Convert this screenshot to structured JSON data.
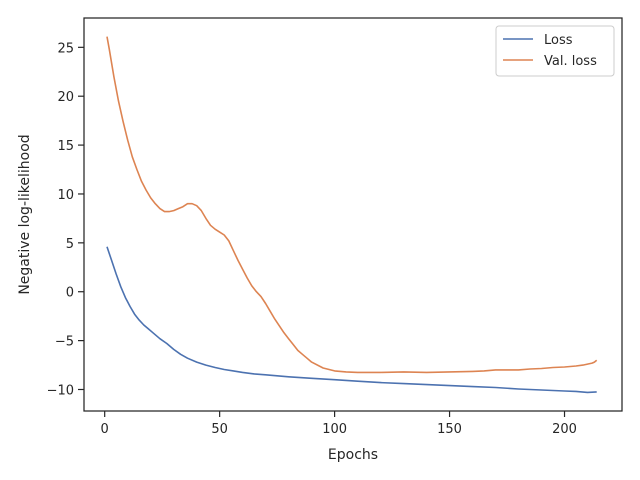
{
  "chart_data": {
    "type": "line",
    "xlabel": "Epochs",
    "ylabel": "Negative log-likelihood",
    "xlim": [
      -9,
      225
    ],
    "ylim": [
      -12.2,
      28
    ],
    "xticks": [
      0,
      50,
      100,
      150,
      200
    ],
    "yticks": [
      -10,
      -5,
      0,
      5,
      10,
      15,
      20,
      25
    ],
    "ytick_labels": [
      "−10",
      "−5",
      "0",
      "5",
      "10",
      "15",
      "20",
      "25"
    ],
    "grid": false,
    "legend_position": "top-right",
    "series": [
      {
        "name": "Loss",
        "color": "#4c72b0",
        "x": [
          1,
          3,
          5,
          7,
          9,
          11,
          13,
          15,
          17,
          19,
          21,
          24,
          27,
          30,
          33,
          36,
          40,
          44,
          48,
          52,
          56,
          60,
          65,
          70,
          75,
          80,
          90,
          100,
          110,
          120,
          130,
          140,
          150,
          160,
          170,
          180,
          190,
          200,
          205,
          210,
          214
        ],
        "y": [
          4.6,
          3.2,
          1.8,
          0.5,
          -0.6,
          -1.5,
          -2.3,
          -2.9,
          -3.4,
          -3.8,
          -4.2,
          -4.8,
          -5.3,
          -5.9,
          -6.4,
          -6.8,
          -7.2,
          -7.5,
          -7.75,
          -7.95,
          -8.1,
          -8.25,
          -8.4,
          -8.5,
          -8.6,
          -8.7,
          -8.85,
          -9.0,
          -9.15,
          -9.3,
          -9.4,
          -9.5,
          -9.6,
          -9.7,
          -9.8,
          -9.95,
          -10.05,
          -10.15,
          -10.2,
          -10.3,
          -10.25
        ]
      },
      {
        "name": "Val. loss",
        "color": "#dd8452",
        "x": [
          1,
          2,
          4,
          6,
          8,
          10,
          12,
          14,
          16,
          18,
          20,
          22,
          24,
          26,
          28,
          30,
          32,
          34,
          36,
          38,
          40,
          42,
          44,
          46,
          48,
          50,
          52,
          54,
          56,
          58,
          60,
          62,
          64,
          66,
          68,
          70,
          72,
          74,
          76,
          78,
          80,
          82,
          84,
          86,
          88,
          90,
          95,
          100,
          105,
          110,
          120,
          130,
          140,
          150,
          160,
          165,
          170,
          175,
          180,
          185,
          190,
          195,
          200,
          205,
          208,
          210,
          212,
          213,
          214
        ],
        "y": [
          26.1,
          24.8,
          22.0,
          19.5,
          17.4,
          15.5,
          13.8,
          12.5,
          11.3,
          10.4,
          9.6,
          9.0,
          8.5,
          8.2,
          8.2,
          8.3,
          8.5,
          8.7,
          9.0,
          9.0,
          8.8,
          8.3,
          7.5,
          6.8,
          6.4,
          6.1,
          5.8,
          5.2,
          4.2,
          3.2,
          2.3,
          1.4,
          0.6,
          0.0,
          -0.5,
          -1.2,
          -2.0,
          -2.8,
          -3.5,
          -4.2,
          -4.8,
          -5.4,
          -6.0,
          -6.4,
          -6.8,
          -7.2,
          -7.8,
          -8.1,
          -8.2,
          -8.25,
          -8.25,
          -8.2,
          -8.25,
          -8.2,
          -8.15,
          -8.1,
          -8.0,
          -8.0,
          -8.0,
          -7.9,
          -7.85,
          -7.75,
          -7.7,
          -7.6,
          -7.5,
          -7.4,
          -7.3,
          -7.2,
          -7.0
        ]
      }
    ]
  }
}
